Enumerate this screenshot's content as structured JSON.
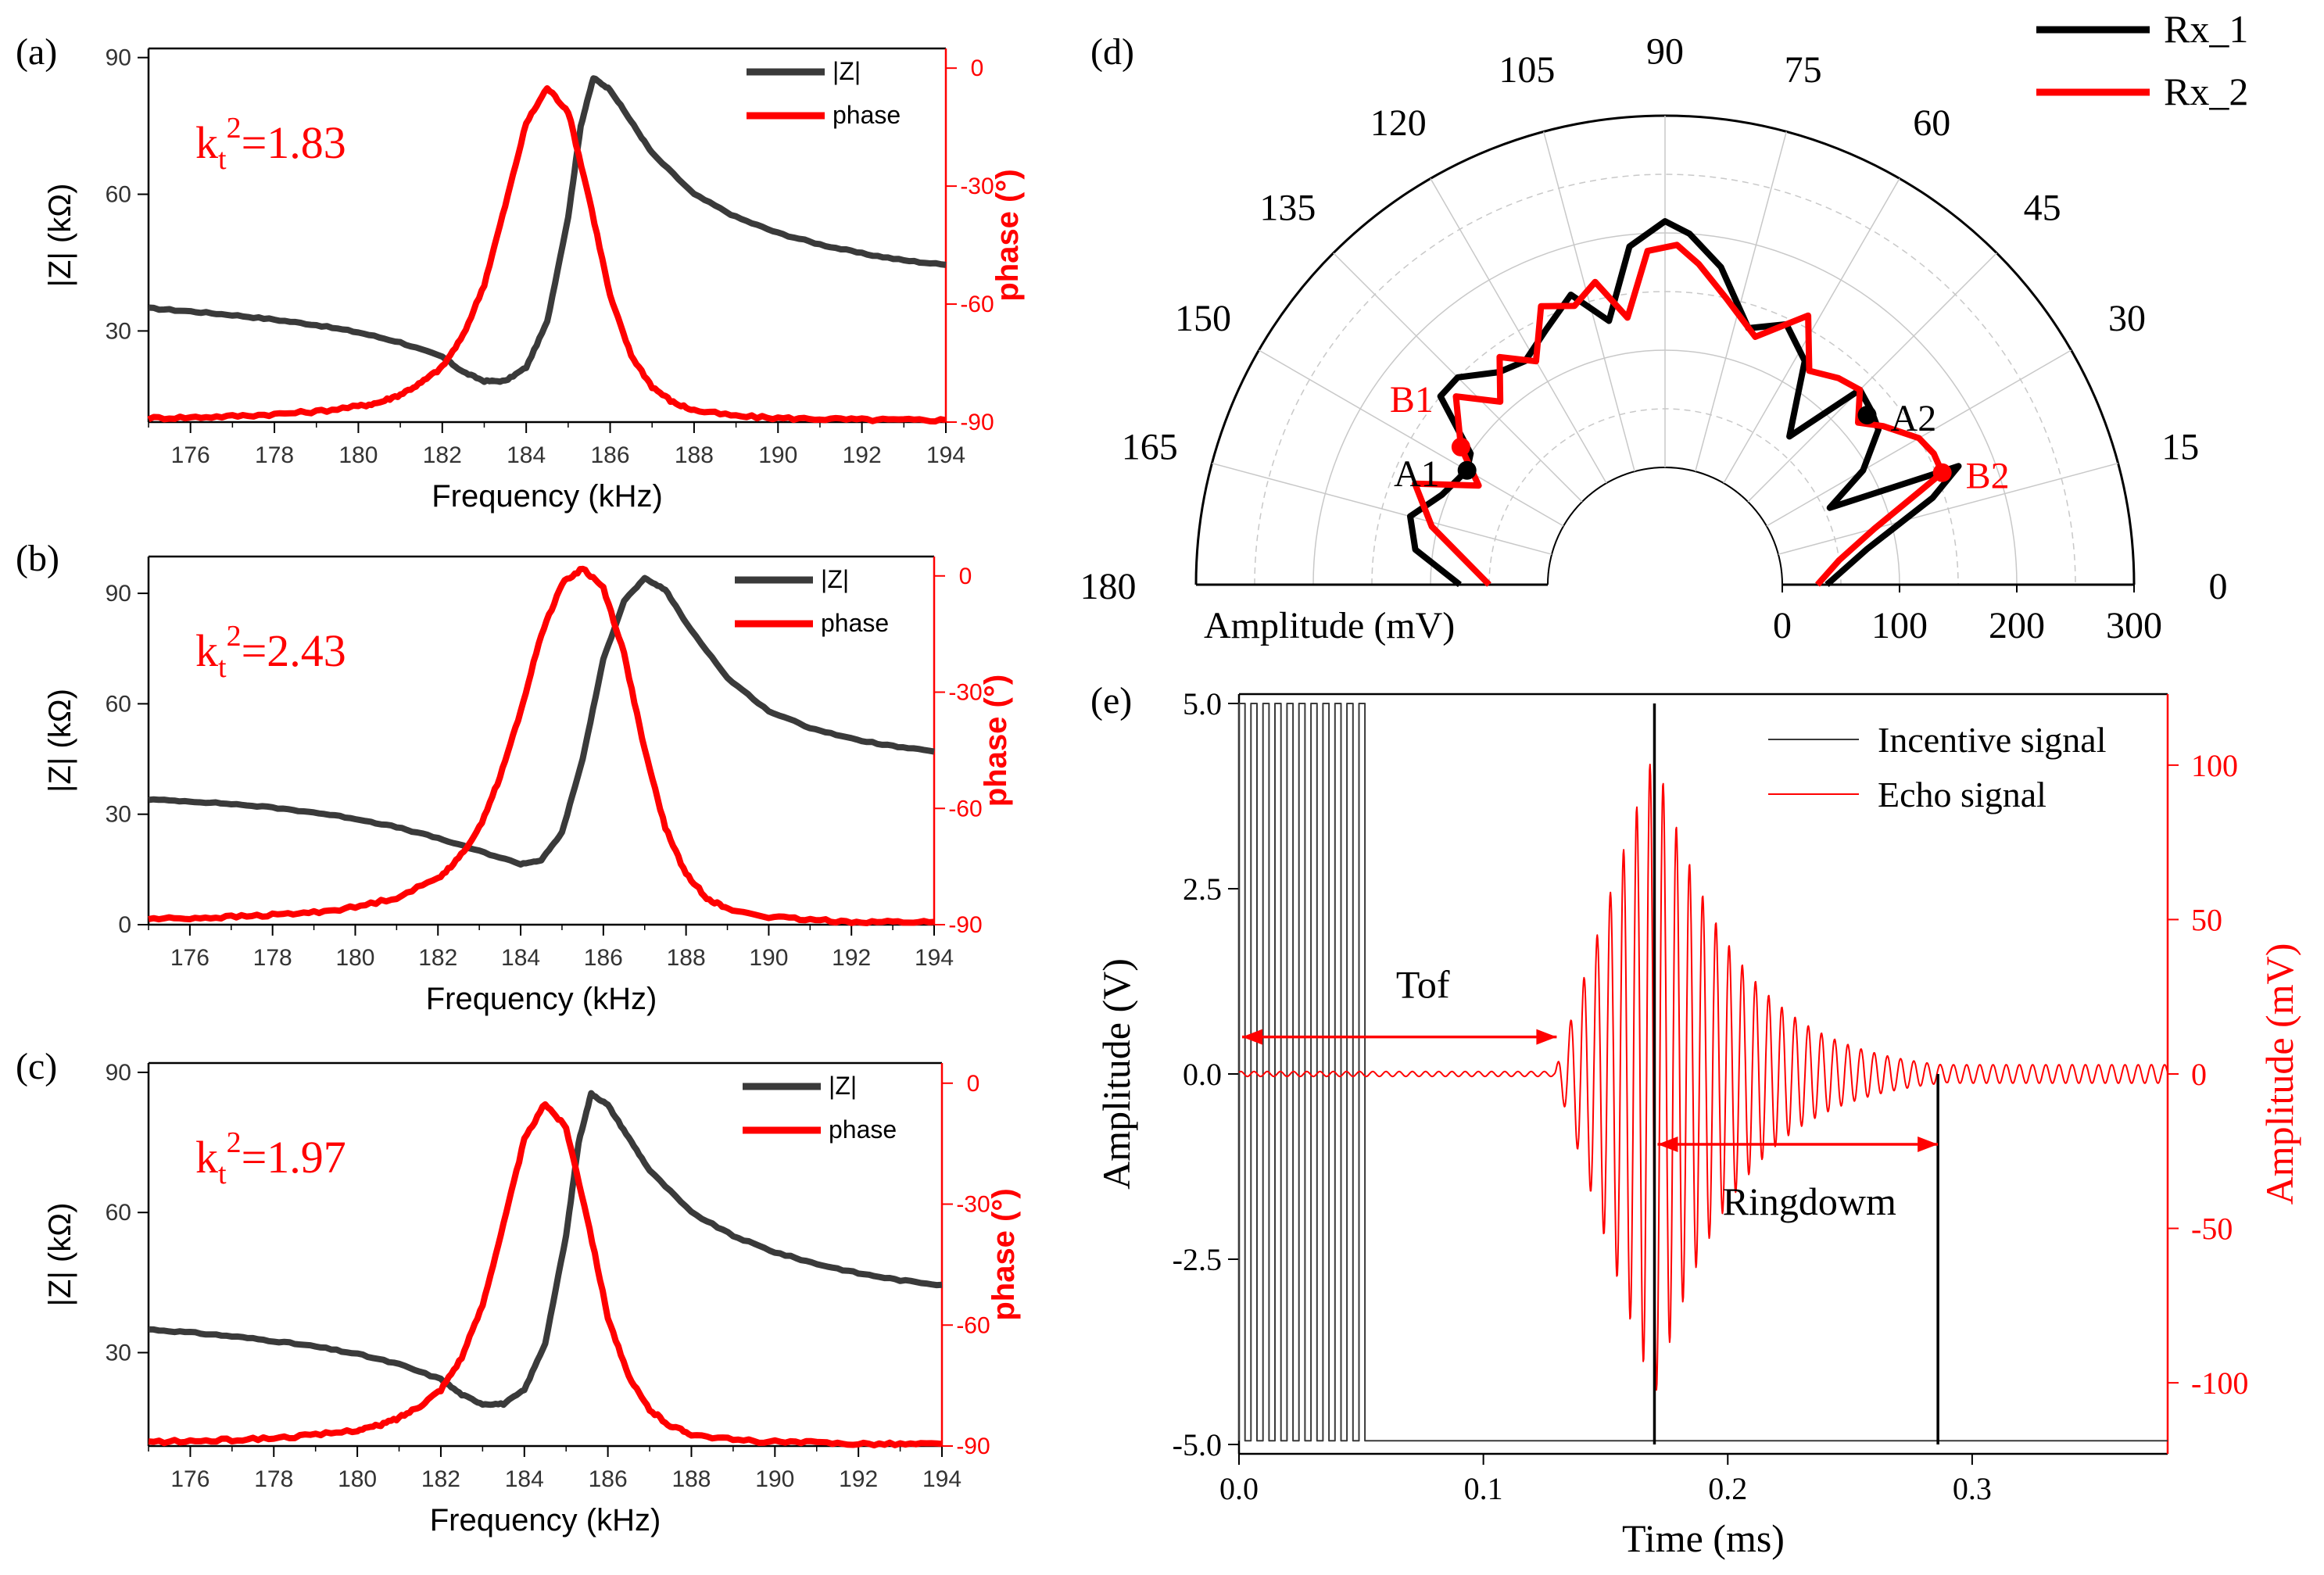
{
  "colors": {
    "black": "#000000",
    "gray": "#3a3a3a",
    "red": "#ff0000",
    "grid": "#c8c8c8"
  },
  "chart_data": [
    {
      "id": "a",
      "panel_label": "(a)",
      "type": "line",
      "xlabel": "Frequency (kHz)",
      "ylabel": "|Z| (kΩ)",
      "y2label": "phase (°)",
      "xlim": [
        175,
        194
      ],
      "ylim": [
        10,
        92
      ],
      "y2lim": [
        -90,
        5
      ],
      "xticks": [
        176,
        178,
        180,
        182,
        184,
        186,
        188,
        190,
        192,
        194
      ],
      "yticks": [
        30,
        60,
        90
      ],
      "y2ticks": [
        0,
        -30,
        -60,
        -90
      ],
      "kt2_prefix": "k",
      "kt2_sub": "t",
      "kt2_sup": "2",
      "kt2_value": "=1.83",
      "legend": [
        "|Z|",
        "phase"
      ],
      "series": [
        {
          "name": "|Z|",
          "axis": "y",
          "color": "#3a3a3a",
          "x": [
            175,
            176,
            177,
            178,
            179,
            180,
            181,
            182,
            182.5,
            183,
            183.5,
            184,
            184.5,
            185,
            185.3,
            185.6,
            186,
            186.5,
            187,
            188,
            189,
            190,
            191,
            192,
            193,
            194
          ],
          "y": [
            35,
            34.3,
            33.5,
            32.5,
            31.3,
            29.7,
            27.5,
            24.3,
            21,
            19,
            19,
            22,
            32,
            55,
            75,
            85.5,
            83,
            76,
            69,
            60,
            55,
            51.5,
            49,
            47,
            45.5,
            44.5
          ]
        },
        {
          "name": "phase",
          "axis": "y2",
          "color": "#ff0000",
          "x": [
            175,
            176,
            177,
            178,
            179,
            180,
            180.5,
            181,
            181.5,
            182,
            182.5,
            183,
            183.5,
            184,
            184.5,
            185,
            185.5,
            186,
            186.5,
            187,
            187.5,
            188,
            189,
            190,
            191,
            192,
            193,
            194
          ],
          "y": [
            -89,
            -88.8,
            -88.5,
            -88,
            -87.3,
            -86,
            -85,
            -83,
            -80,
            -76,
            -68,
            -55,
            -35,
            -14,
            -5,
            -11,
            -33,
            -58,
            -73,
            -81,
            -85,
            -87,
            -88.5,
            -89,
            -89.2,
            -89.4,
            -89.5,
            -89.5
          ]
        }
      ]
    },
    {
      "id": "b",
      "panel_label": "(b)",
      "type": "line",
      "xlabel": "Frequency (kHz)",
      "ylabel": "|Z| (kΩ)",
      "y2label": "phase (°)",
      "xlim": [
        175,
        194
      ],
      "ylim": [
        0,
        100
      ],
      "y2lim": [
        -90,
        5
      ],
      "xticks": [
        176,
        178,
        180,
        182,
        184,
        186,
        188,
        190,
        192,
        194
      ],
      "yticks": [
        0,
        30,
        60,
        90
      ],
      "y2ticks": [
        0,
        -30,
        -60,
        -90
      ],
      "kt2_prefix": "k",
      "kt2_sub": "t",
      "kt2_sup": "2",
      "kt2_value": "=2.43",
      "legend": [
        "|Z|",
        "phase"
      ],
      "series": [
        {
          "name": "|Z|",
          "axis": "y",
          "color": "#3a3a3a",
          "x": [
            175,
            176,
            177,
            178,
            179,
            180,
            181,
            182,
            183,
            184,
            184.5,
            185,
            185.5,
            186,
            186.5,
            187,
            187.5,
            188,
            189,
            190,
            191,
            192,
            193,
            194
          ],
          "y": [
            34,
            33.5,
            32.8,
            31.8,
            30.5,
            28.8,
            26.5,
            23.5,
            20,
            16.5,
            17.5,
            25,
            45,
            72,
            88,
            94,
            91,
            82,
            67,
            58,
            53.5,
            50.5,
            48.5,
            47
          ]
        },
        {
          "name": "phase",
          "axis": "y2",
          "color": "#ff0000",
          "x": [
            175,
            176,
            177,
            178,
            179,
            180,
            181,
            182,
            182.5,
            183,
            183.5,
            184,
            184.5,
            185,
            185.5,
            186,
            186.5,
            187,
            187.5,
            188,
            188.5,
            189,
            190,
            191,
            192,
            193,
            194
          ],
          "y": [
            -88.5,
            -88.3,
            -88,
            -87.5,
            -86.8,
            -85.5,
            -83,
            -78,
            -73,
            -65,
            -52,
            -35,
            -15,
            -2,
            2,
            -3,
            -20,
            -45,
            -65,
            -77,
            -83,
            -86,
            -88,
            -88.8,
            -89.2,
            -89.3,
            -89.3
          ]
        }
      ]
    },
    {
      "id": "c",
      "panel_label": "(c)",
      "type": "line",
      "xlabel": "Frequency (kHz)",
      "ylabel": "|Z| (kΩ)",
      "y2label": "phase (°)",
      "xlim": [
        175,
        194
      ],
      "ylim": [
        10,
        92
      ],
      "y2lim": [
        -90,
        5
      ],
      "xticks": [
        176,
        178,
        180,
        182,
        184,
        186,
        188,
        190,
        192,
        194
      ],
      "yticks": [
        30,
        60,
        90
      ],
      "y2ticks": [
        0,
        -30,
        -60,
        -90
      ],
      "kt2_prefix": "k",
      "kt2_sub": "t",
      "kt2_sup": "2",
      "kt2_value": "=1.97",
      "legend": [
        "|Z|",
        "phase"
      ],
      "series": [
        {
          "name": "|Z|",
          "axis": "y",
          "color": "#3a3a3a",
          "x": [
            175,
            176,
            177,
            178,
            179,
            180,
            181,
            182,
            182.5,
            183,
            183.5,
            184,
            184.5,
            185,
            185.3,
            185.6,
            186,
            186.5,
            187,
            188,
            189,
            190,
            191,
            192,
            193,
            194
          ],
          "y": [
            35,
            34.3,
            33.5,
            32.5,
            31.3,
            29.7,
            27.5,
            24.3,
            21,
            19,
            19,
            22,
            32,
            55,
            75,
            85.5,
            83,
            76,
            69,
            60,
            55,
            51.5,
            49,
            47,
            45.5,
            44.5
          ]
        },
        {
          "name": "phase",
          "axis": "y2",
          "color": "#ff0000",
          "x": [
            175,
            176,
            177,
            178,
            179,
            180,
            180.5,
            181,
            181.5,
            182,
            182.5,
            183,
            183.5,
            184,
            184.5,
            185,
            185.5,
            186,
            186.5,
            187,
            187.5,
            188,
            189,
            190,
            191,
            192,
            193,
            194
          ],
          "y": [
            -89,
            -88.8,
            -88.5,
            -88,
            -87.3,
            -86,
            -85,
            -83,
            -80,
            -76,
            -68,
            -55,
            -35,
            -14,
            -5,
            -11,
            -33,
            -58,
            -73,
            -81,
            -85,
            -87,
            -88.5,
            -89,
            -89.2,
            -89.4,
            -89.5,
            -89.5
          ]
        }
      ]
    },
    {
      "id": "d",
      "panel_label": "(d)",
      "type": "polar",
      "rlabel": "Amplitude (mV)",
      "rlim": [
        -100,
        300
      ],
      "rticks": [
        0,
        100,
        200,
        300
      ],
      "angle_ticks": [
        0,
        15,
        30,
        45,
        60,
        75,
        90,
        105,
        120,
        135,
        150,
        165,
        180
      ],
      "legend": [
        "Rx_1",
        "Rx_2"
      ],
      "annotations": [
        {
          "text": "A1",
          "angle": 150,
          "r": 95,
          "color": "#000000"
        },
        {
          "text": "A2",
          "angle": 40,
          "r": 125,
          "color": "#000000"
        },
        {
          "text": "B1",
          "angle": 146,
          "r": 110,
          "color": "#ff0000"
        },
        {
          "text": "B2",
          "angle": 22,
          "r": 155,
          "color": "#ff0000"
        }
      ],
      "series": [
        {
          "name": "Rx_1",
          "color": "#000000",
          "angle": [
            0,
            10,
            18,
            22,
            25,
            30,
            36,
            40,
            45,
            50,
            58,
            65,
            72,
            80,
            86,
            90,
            96,
            102,
            108,
            115,
            122,
            128,
            135,
            140,
            146,
            150,
            158,
            165,
            172,
            180
          ],
          "r": [
            38,
            75,
            140,
            170,
            55,
            95,
            125,
            130,
            135,
            65,
            125,
            145,
            130,
            175,
            200,
            210,
            190,
            130,
            160,
            140,
            125,
            130,
            150,
            150,
            100,
            95,
            105,
            125,
            115,
            75
          ]
        },
        {
          "name": "Rx_2",
          "color": "#ff0000",
          "angle": [
            0,
            8,
            15,
            20,
            22,
            26,
            30,
            36,
            40,
            45,
            50,
            56,
            62,
            70,
            78,
            84,
            88,
            93,
            98,
            103,
            108,
            114,
            120,
            126,
            132,
            138,
            146,
            152,
            158,
            166,
            180
          ],
          "r": [
            30,
            50,
            85,
            130,
            155,
            155,
            150,
            130,
            115,
            135,
            130,
            120,
            160,
            125,
            150,
            175,
            190,
            185,
            130,
            165,
            150,
            160,
            120,
            140,
            110,
            140,
            110,
            80,
            130,
            105,
            50
          ]
        }
      ]
    },
    {
      "id": "e",
      "panel_label": "(e)",
      "type": "line",
      "xlabel": "Time (ms)",
      "ylabel": "Amplitude (V)",
      "y2label": "Amplitude (mV)",
      "xlim": [
        0,
        0.38
      ],
      "ylim": [
        -5,
        5
      ],
      "y2lim": [
        -123,
        123
      ],
      "xticks": [
        0.0,
        0.1,
        0.2,
        0.3
      ],
      "xtick_labels": [
        "0.0",
        "0.1",
        "0.2",
        "0.3"
      ],
      "yticks": [
        5,
        2.5,
        0,
        -2.5,
        -5
      ],
      "ytick_labels": [
        "5.0",
        "2.5",
        "0.0",
        "-2.5",
        "-5.0"
      ],
      "y2ticks": [
        100,
        50,
        0,
        -50,
        -100
      ],
      "legend": [
        "Incentive signal",
        "Echo signal"
      ],
      "series": [
        {
          "name": "Incentive signal",
          "axis": "y",
          "color": "#3a3a3a",
          "description_of_shape": "square-wave burst",
          "burst_start": 0.0,
          "burst_end": 0.054,
          "burst_cycles": 11,
          "high": 5.0,
          "low": -4.95,
          "rest_level": -4.95
        },
        {
          "name": "Echo signal",
          "axis": "y2",
          "color": "#ff0000",
          "onset": 0.129,
          "peak_time": 0.17,
          "peak_amplitude": 105,
          "end_time": 0.29,
          "period": 0.0054,
          "tail_amplitude": 3
        }
      ],
      "annotations": [
        {
          "text": "Tof",
          "x_start": 0.0,
          "x_end": 0.13,
          "y": 0.5
        },
        {
          "text": "Ringdowm",
          "x_start": 0.17,
          "x_end": 0.286,
          "y": -0.95
        }
      ],
      "markers": [
        {
          "x": 0.17,
          "y_from": -5,
          "y_to": 5
        },
        {
          "x": 0.286,
          "y_from": -5,
          "y_to": 0
        }
      ]
    }
  ]
}
